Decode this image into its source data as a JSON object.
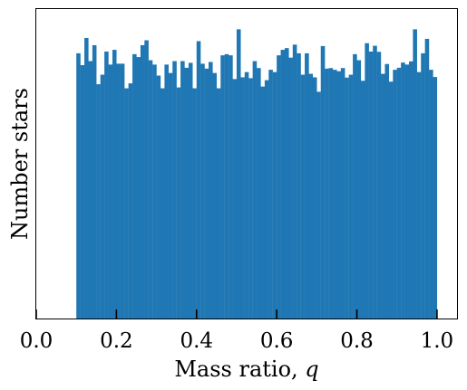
{
  "chart_data": {
    "type": "bar",
    "title": "",
    "xlabel_text": "Mass ratio, ",
    "xlabel_var": "q",
    "ylabel": "Number stars",
    "xlim": [
      0.0,
      1.05
    ],
    "ylim": [
      0,
      1.07
    ],
    "x_ticks": [
      0.0,
      0.2,
      0.4,
      0.6,
      0.8,
      1.0
    ],
    "x_tick_labels": [
      "0.0",
      "0.2",
      "0.4",
      "0.6",
      "0.8",
      "1.0"
    ],
    "y_ticks_shown": false,
    "grid": false,
    "bar_color": "#1f77b4",
    "bin_range": [
      0.1,
      1.0
    ],
    "bin_count": 90,
    "values": [
      0.917,
      0.876,
      0.97,
      0.89,
      0.945,
      0.81,
      0.843,
      0.923,
      0.878,
      0.929,
      0.881,
      0.881,
      0.796,
      0.813,
      0.914,
      0.904,
      0.945,
      0.962,
      0.893,
      0.878,
      0.84,
      0.796,
      0.878,
      0.849,
      0.89,
      0.799,
      0.89,
      0.867,
      0.884,
      0.796,
      0.959,
      0.881,
      0.864,
      0.887,
      0.849,
      0.796,
      0.91,
      0.914,
      0.91,
      0.828,
      1.0,
      0.834,
      0.852,
      0.831,
      0.89,
      0.866,
      0.802,
      0.824,
      0.86,
      0.852,
      0.91,
      0.929,
      0.935,
      0.902,
      0.947,
      0.917,
      0.843,
      0.917,
      0.846,
      0.834,
      0.784,
      0.942,
      0.864,
      0.866,
      0.86,
      0.855,
      0.866,
      0.833,
      0.843,
      0.914,
      0.893,
      0.822,
      0.952,
      0.923,
      0.943,
      0.922,
      0.846,
      0.88,
      0.819,
      0.86,
      0.867,
      0.885,
      0.878,
      0.889,
      1.0,
      0.852,
      0.917,
      0.967,
      0.86,
      0.835
    ]
  }
}
